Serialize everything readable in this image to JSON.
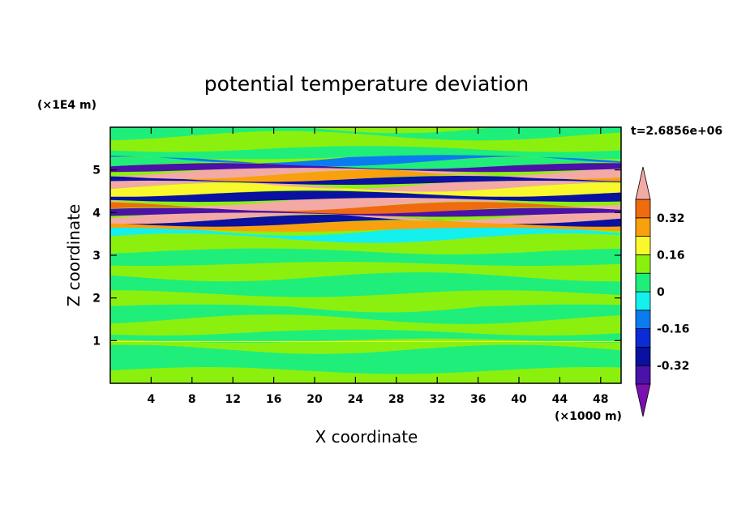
{
  "chart_data": {
    "type": "heatmap",
    "title": "potential temperature deviation",
    "xlabel": "X coordinate",
    "ylabel": "Z coordinate",
    "x_unit": "(×1000 m)",
    "y_unit": "(×1E4 m)",
    "time_label": "t=2.6856e+06",
    "xlim": [
      0,
      50
    ],
    "ylim": [
      0,
      6
    ],
    "x_ticks": [
      4,
      8,
      12,
      16,
      20,
      24,
      28,
      32,
      36,
      40,
      44,
      48
    ],
    "y_ticks": [
      1,
      2,
      3,
      4,
      5
    ],
    "colorbar": {
      "levels": [
        -0.4,
        -0.32,
        -0.24,
        -0.16,
        -0.08,
        0,
        0.08,
        0.16,
        0.24,
        0.32,
        0.4
      ],
      "colors": [
        "#7a10b0",
        "#4a12a8",
        "#0a10a0",
        "#0a2bd6",
        "#0b7cf0",
        "#14f0ee",
        "#1fee7a",
        "#8cf00e",
        "#f8f82c",
        "#f9a00e",
        "#f06a10",
        "#f03a28",
        "#f4aaa4"
      ],
      "tick_labels": [
        "0.32",
        "0.16",
        "0",
        "-0.16",
        "-0.32"
      ],
      "tick_values": [
        0.32,
        0.16,
        0,
        -0.16,
        -0.32
      ]
    },
    "bands": [
      {
        "z": 0.3,
        "value": 0.08
      },
      {
        "z": 0.8,
        "value": 0.0
      },
      {
        "z": 1.0,
        "value": 0.08
      },
      {
        "z": 1.2,
        "value": 0.0
      },
      {
        "z": 1.5,
        "value": 0.08
      },
      {
        "z": 1.8,
        "value": 0.0
      },
      {
        "z": 2.1,
        "value": 0.08
      },
      {
        "z": 2.5,
        "value": 0.0
      },
      {
        "z": 2.8,
        "value": 0.08
      },
      {
        "z": 3.1,
        "value": 0.0
      },
      {
        "z": 3.4,
        "value": 0.08
      },
      {
        "z": 3.6,
        "value": -0.08
      },
      {
        "z": 3.75,
        "value": 0.24
      },
      {
        "z": 3.85,
        "value": -0.32
      },
      {
        "z": 3.95,
        "value": 0.4
      },
      {
        "z": 4.05,
        "value": -0.4
      },
      {
        "z": 4.15,
        "value": 0.32
      },
      {
        "z": 4.3,
        "value": 0.4
      },
      {
        "z": 4.45,
        "value": -0.32
      },
      {
        "z": 4.6,
        "value": 0.16
      },
      {
        "z": 4.7,
        "value": 0.4
      },
      {
        "z": 4.8,
        "value": -0.32
      },
      {
        "z": 4.9,
        "value": 0.24
      },
      {
        "z": 5.0,
        "value": 0.4
      },
      {
        "z": 5.1,
        "value": -0.4
      },
      {
        "z": 5.2,
        "value": 0.0
      },
      {
        "z": 5.3,
        "value": -0.16
      },
      {
        "z": 5.5,
        "value": 0.0
      },
      {
        "z": 5.8,
        "value": 0.08
      },
      {
        "z": 6.0,
        "value": 0.0
      }
    ]
  }
}
